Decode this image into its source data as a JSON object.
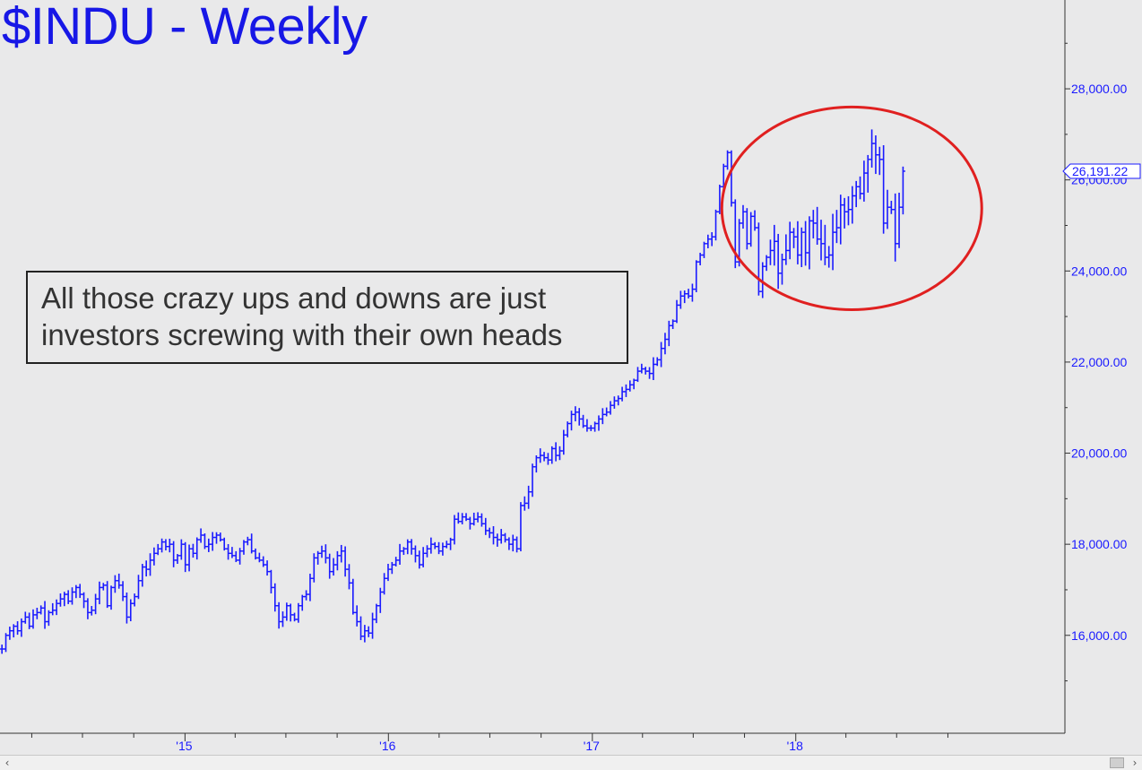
{
  "chart_data": {
    "type": "ohlc",
    "title": "$INDU - Weekly",
    "annotation": "All those crazy ups and downs are just investors screwing with their own heads",
    "annotation_lines": [
      "All those crazy ups and downs are just",
      "investors screwing with their own heads"
    ],
    "last_price_label": "26,191.22",
    "y_ticks": [
      16000,
      18000,
      20000,
      22000,
      24000,
      26000,
      28000
    ],
    "y_tick_labels": [
      "16,000.00",
      "18,000.00",
      "20,000.00",
      "22,000.00",
      "24,000.00",
      "26,000.00",
      "28,000.00"
    ],
    "ylim": [
      13850,
      29950
    ],
    "x_tick_labels": [
      "'15",
      "'16",
      "'17",
      "'18"
    ],
    "xlim": [
      "2014-02-03",
      "2019-04-29"
    ],
    "year_boundaries": [
      "2015-01-01",
      "2016-01-01",
      "2017-01-01",
      "2018-01-01"
    ],
    "quarter_ticks": [
      "2014-04-01",
      "2014-07-01",
      "2014-10-01",
      "2015-04-01",
      "2015-07-01",
      "2015-10-01",
      "2016-04-01",
      "2016-07-01",
      "2016-10-01",
      "2017-04-01",
      "2017-07-01",
      "2017-10-01",
      "2018-04-01",
      "2018-07-01",
      "2018-10-01"
    ],
    "grid": false,
    "series_color": "#1a1aff",
    "highlight_ellipse_color": "#e02020",
    "highlight_start_date": "2017-11-13",
    "series": [
      {
        "name": "INDU",
        "start_date": "2014-02-03",
        "close": [
          15700,
          16000,
          16100,
          16200,
          16100,
          16300,
          16400,
          16200,
          16450,
          16500,
          16600,
          16300,
          16500,
          16550,
          16700,
          16800,
          16900,
          16750,
          16950,
          17050,
          16900,
          16750,
          16500,
          16550,
          16800,
          17050,
          17100,
          16650,
          17050,
          17200,
          17100,
          16850,
          16400,
          16700,
          16850,
          17200,
          17500,
          17450,
          17650,
          17800,
          17900,
          18050,
          17950,
          18000,
          17650,
          17750,
          18000,
          17550,
          17900,
          17800,
          18100,
          18200,
          17950,
          18000,
          18150,
          18200,
          18100,
          17900,
          17800,
          17750,
          17650,
          17850,
          18050,
          18100,
          17850,
          17700,
          17650,
          17550,
          17400,
          17050,
          16650,
          16300,
          16400,
          16650,
          16450,
          16350,
          16650,
          16850,
          16900,
          17250,
          17700,
          17800,
          17850,
          17700,
          17400,
          17550,
          17750,
          17850,
          17450,
          17150,
          16500,
          16300,
          15980,
          16100,
          16050,
          16350,
          16650,
          16950,
          17250,
          17450,
          17550,
          17650,
          17850,
          17900,
          18050,
          17900,
          17750,
          17550,
          17800,
          17900,
          18000,
          17950,
          17850,
          17950,
          18000,
          18100,
          18550,
          18500,
          18600,
          18550,
          18450,
          18550,
          18600,
          18450,
          18300,
          18250,
          18150,
          18100,
          18200,
          18100,
          18000,
          18100,
          17900,
          18850,
          18900,
          19150,
          19700,
          19900,
          19950,
          19900,
          19850,
          20100,
          19950,
          20050,
          20400,
          20650,
          20850,
          20900,
          20750,
          20600,
          20550,
          20550,
          20650,
          20750,
          20850,
          20900,
          21050,
          21150,
          21200,
          21350,
          21400,
          21500,
          21600,
          21800,
          21850,
          21800,
          21750,
          21950,
          22050,
          22300,
          22500,
          22800,
          22900,
          23250,
          23450,
          23500,
          23450,
          23600,
          24200,
          24350,
          24600,
          24700,
          24750,
          25300,
          25850,
          26300,
          26600,
          25500,
          24200,
          25050,
          25300,
          24600,
          25200,
          24950,
          23550,
          24100,
          24300,
          24450,
          24650,
          23950,
          24250,
          24450,
          24850,
          24750,
          24350,
          24850,
          24400,
          25100,
          25050,
          24700,
          24600,
          24300,
          24350,
          24850,
          24950,
          25450,
          25300,
          25350,
          25650,
          25850,
          25700,
          26150,
          26450,
          26800,
          26550,
          26450,
          25050,
          25400,
          25350,
          24600,
          25400,
          26191.22
        ]
      }
    ]
  }
}
